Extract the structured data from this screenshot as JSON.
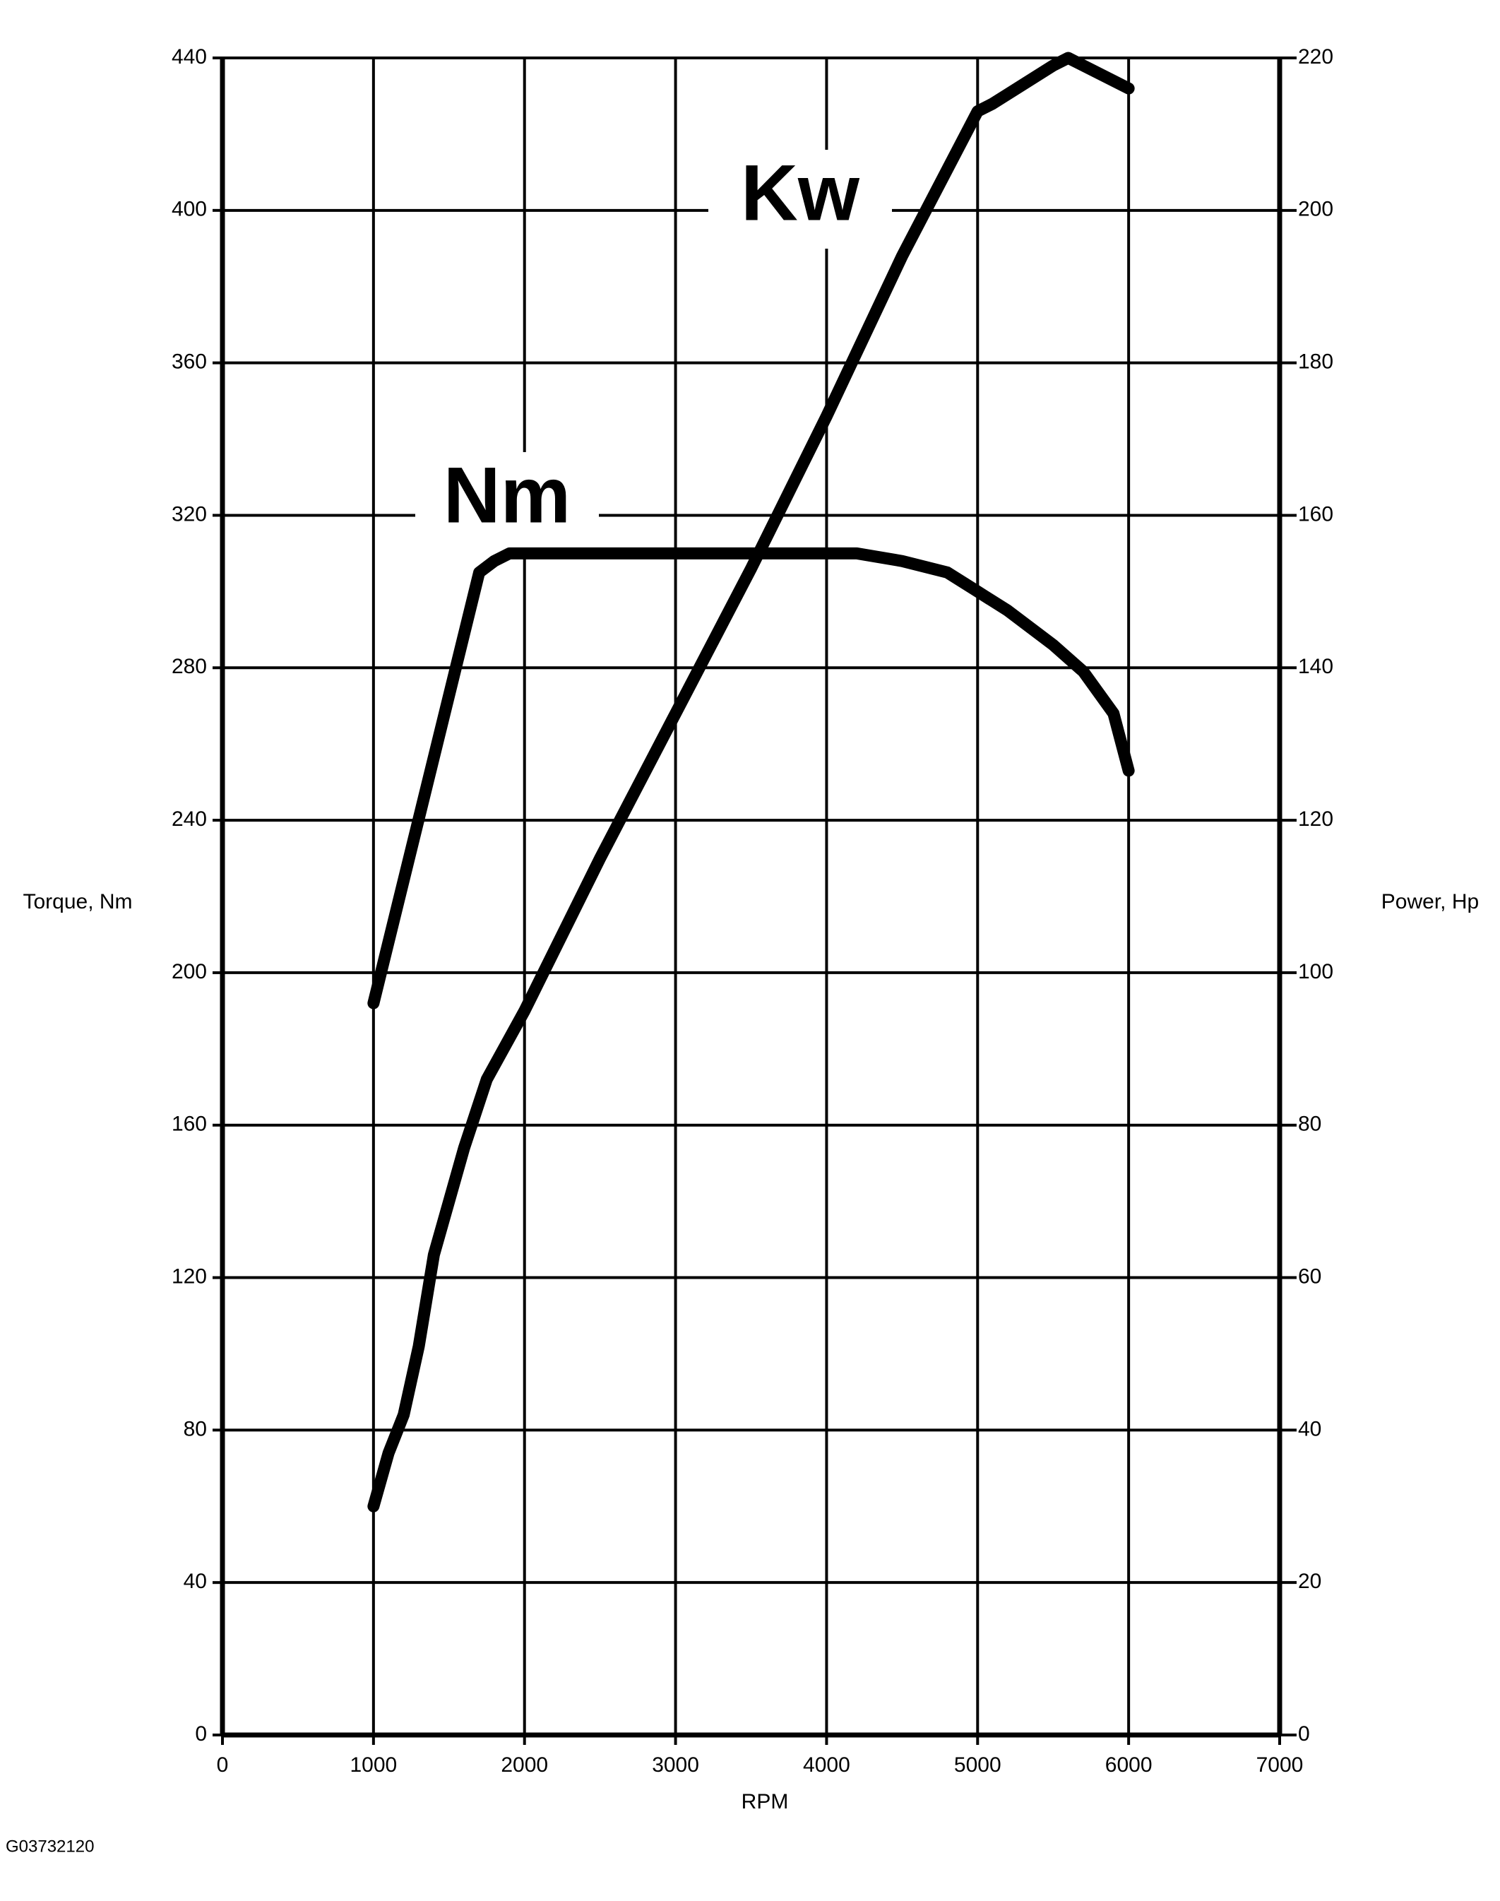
{
  "chart_data": {
    "type": "line",
    "x_label": "RPM",
    "y_label": "Torque, Nm",
    "y2_label": "Power, Hp",
    "footnote": "G03732120",
    "xlim": [
      0,
      7000
    ],
    "xticks": [
      0,
      1000,
      2000,
      3000,
      4000,
      5000,
      6000,
      7000
    ],
    "ylim": [
      0,
      440
    ],
    "yticks": [
      0,
      40,
      80,
      120,
      160,
      200,
      240,
      280,
      320,
      360,
      400,
      440
    ],
    "y2lim": [
      0,
      220
    ],
    "y2ticks": [
      0,
      20,
      40,
      60,
      80,
      100,
      120,
      140,
      160,
      180,
      200,
      220
    ],
    "grid": true,
    "series": [
      {
        "name": "Nm",
        "color": "#000000",
        "x": [
          1000,
          1700,
          1800,
          1900,
          2000,
          4200,
          4500,
          4800,
          5000,
          5200,
          5500,
          5700,
          5900,
          6000
        ],
        "values": [
          192,
          305,
          308,
          310,
          310,
          310,
          308,
          305,
          300,
          295,
          286,
          279,
          268,
          253
        ]
      },
      {
        "name": "Kw",
        "color": "#000000",
        "axis": "y2",
        "x": [
          1000,
          1100,
          1200,
          1300,
          1400,
          1500,
          1600,
          1750,
          2000,
          2500,
          3000,
          3500,
          4000,
          4500,
          5000,
          5100,
          5500,
          5600,
          6000
        ],
        "values": [
          30,
          37,
          42,
          51,
          63,
          70,
          77,
          86,
          95,
          115,
          134,
          153,
          173,
          194,
          213,
          214,
          219,
          220,
          216
        ]
      }
    ]
  }
}
